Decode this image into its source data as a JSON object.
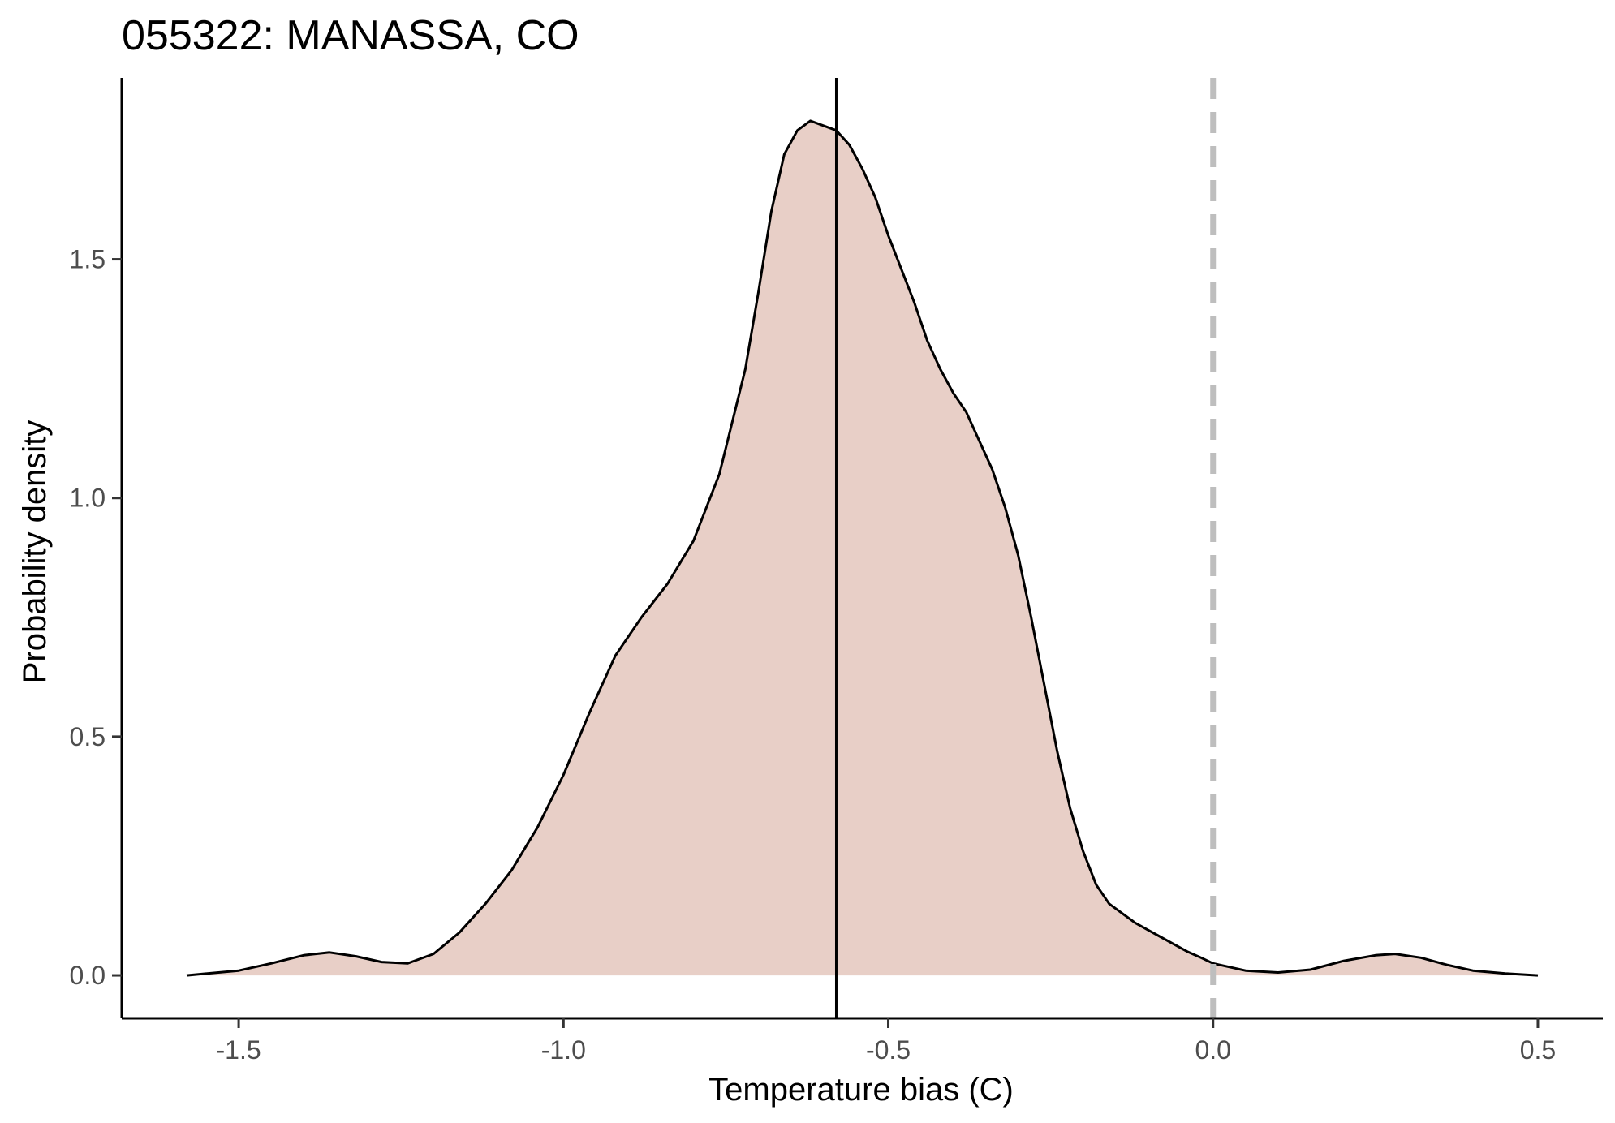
{
  "chart_data": {
    "type": "area",
    "title": "055322: MANASSA, CO",
    "xlabel": "Temperature bias (C)",
    "ylabel": "Probability density",
    "xlim": [
      -1.68,
      0.6
    ],
    "ylim": [
      -0.09,
      1.88
    ],
    "x_ticks": [
      -1.5,
      -1.0,
      -0.5,
      0.0,
      0.5
    ],
    "x_tick_labels": [
      "-1.5",
      "-1.0",
      "-0.5",
      "0.0",
      "0.5"
    ],
    "y_ticks": [
      0.0,
      0.5,
      1.0,
      1.5
    ],
    "y_tick_labels": [
      "0.0",
      "0.5",
      "1.0",
      "1.5"
    ],
    "series": [
      {
        "fill_color": "#e8cfc7",
        "line_color": "#000000",
        "x": [
          -1.58,
          -1.5,
          -1.45,
          -1.4,
          -1.36,
          -1.32,
          -1.28,
          -1.24,
          -1.2,
          -1.16,
          -1.12,
          -1.08,
          -1.04,
          -1.0,
          -0.96,
          -0.92,
          -0.88,
          -0.84,
          -0.8,
          -0.76,
          -0.72,
          -0.7,
          -0.68,
          -0.66,
          -0.64,
          -0.62,
          -0.6,
          -0.58,
          -0.56,
          -0.54,
          -0.52,
          -0.5,
          -0.48,
          -0.46,
          -0.44,
          -0.42,
          -0.4,
          -0.38,
          -0.36,
          -0.34,
          -0.32,
          -0.3,
          -0.28,
          -0.26,
          -0.24,
          -0.22,
          -0.2,
          -0.18,
          -0.16,
          -0.14,
          -0.12,
          -0.1,
          -0.08,
          -0.06,
          -0.04,
          -0.02,
          0.0,
          0.05,
          0.1,
          0.15,
          0.2,
          0.25,
          0.28,
          0.32,
          0.36,
          0.4,
          0.45,
          0.5
        ],
        "y": [
          0.0,
          0.01,
          0.025,
          0.042,
          0.048,
          0.04,
          0.028,
          0.025,
          0.045,
          0.09,
          0.15,
          0.22,
          0.31,
          0.42,
          0.55,
          0.67,
          0.75,
          0.82,
          0.91,
          1.05,
          1.27,
          1.43,
          1.6,
          1.72,
          1.77,
          1.79,
          1.78,
          1.77,
          1.74,
          1.69,
          1.63,
          1.55,
          1.48,
          1.41,
          1.33,
          1.27,
          1.22,
          1.18,
          1.12,
          1.06,
          0.98,
          0.88,
          0.75,
          0.61,
          0.47,
          0.35,
          0.26,
          0.19,
          0.15,
          0.13,
          0.11,
          0.095,
          0.08,
          0.065,
          0.05,
          0.038,
          0.025,
          0.01,
          0.006,
          0.012,
          0.03,
          0.042,
          0.045,
          0.037,
          0.022,
          0.01,
          0.004,
          0.0
        ]
      }
    ],
    "vlines": [
      {
        "x": -0.58,
        "style": "solid",
        "color": "#000000"
      },
      {
        "x": 0.0,
        "style": "dashed",
        "color": "#bebebe"
      }
    ],
    "grid": false,
    "legend": "none"
  }
}
